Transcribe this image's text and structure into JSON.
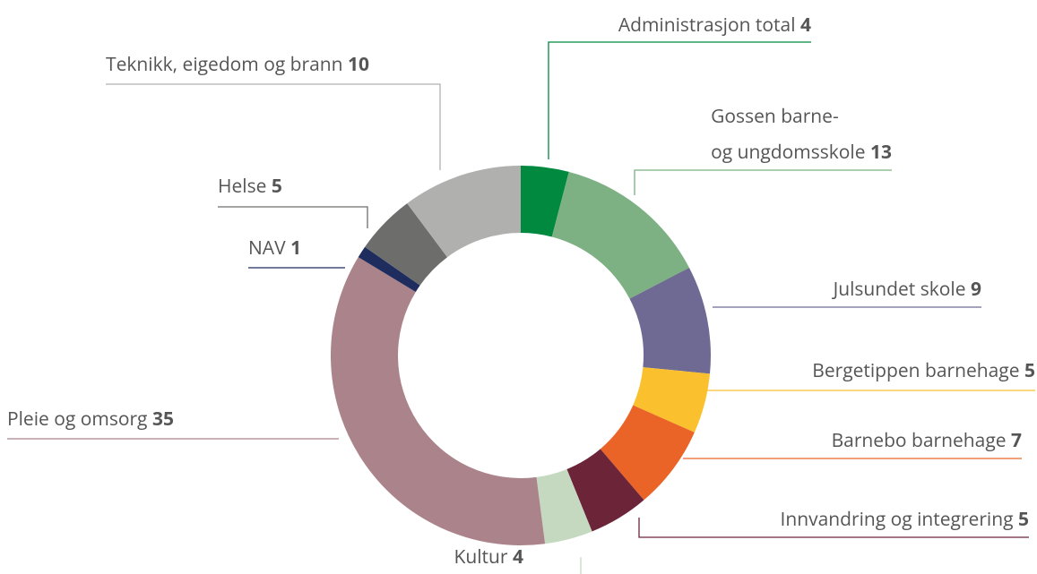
{
  "chart_data": {
    "type": "donut",
    "categories": [
      "Administrasjon total",
      "Gossen barne-\nog ungdomsskole",
      "Julsundet skole",
      "Bergetippen barnehage",
      "Barnebo barnehage",
      "Innvandring og integrering",
      "Kultur",
      "Pleie og omsorg",
      "NAV",
      "Helse",
      "Teknikk, eigedom og brann"
    ],
    "values": [
      4,
      13,
      9,
      5,
      7,
      5,
      4,
      35,
      1,
      5,
      10
    ],
    "colors": [
      "#00893f",
      "#7db083",
      "#6e6a93",
      "#fbc02d",
      "#ea6428",
      "#6c2439",
      "#c5d9c0",
      "#ab838a",
      "#1f2d5e",
      "#6d6e6c",
      "#b0b0ae"
    ]
  }
}
